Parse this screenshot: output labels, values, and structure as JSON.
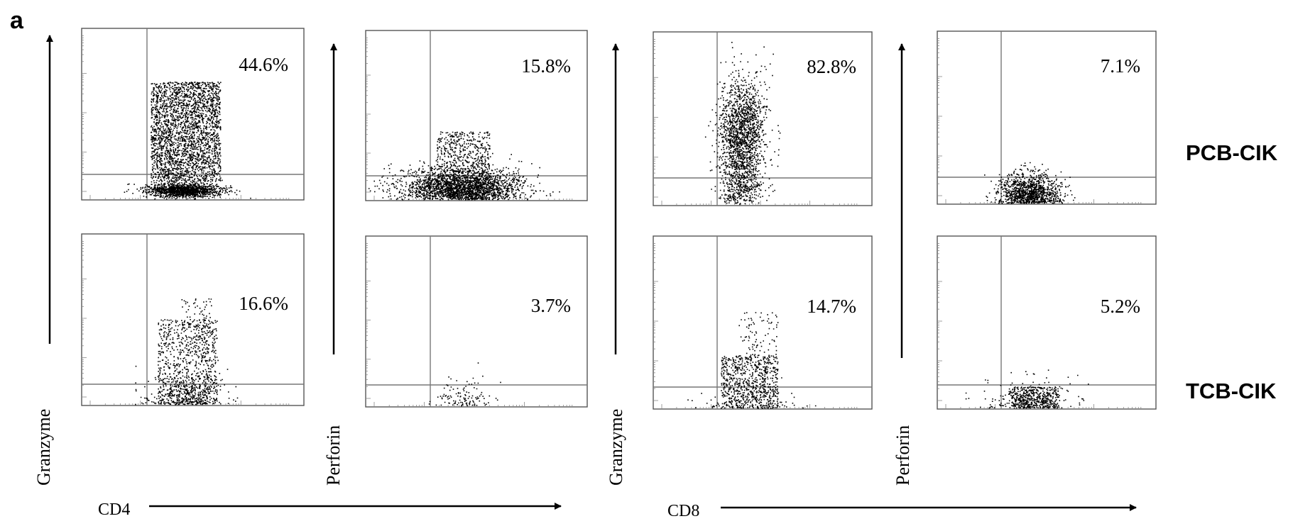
{
  "panel_letter": "a",
  "row_labels": [
    "PCB-CIK",
    "TCB-CIK"
  ],
  "axis_labels": {
    "cd4": "CD4",
    "cd8": "CD8",
    "granzyme": "Granzyme",
    "perforin": "Perforin"
  },
  "colors": {
    "frame": "#555555",
    "gate": "#777777",
    "dots": "#000000",
    "text": "#000000"
  },
  "chart_data": {
    "type": "scatter",
    "plot_kind": "flow-cytometry-dot-plot-grid",
    "axis_scale": "log",
    "panels": [
      {
        "row": "PCB-CIK",
        "x_marker": "CD4",
        "y_marker": "Granzyme",
        "quadrant_percent": "44.6%"
      },
      {
        "row": "PCB-CIK",
        "x_marker": "CD4",
        "y_marker": "Perforin",
        "quadrant_percent": "15.8%"
      },
      {
        "row": "PCB-CIK",
        "x_marker": "CD8",
        "y_marker": "Granzyme",
        "quadrant_percent": "82.8%"
      },
      {
        "row": "PCB-CIK",
        "x_marker": "CD8",
        "y_marker": "Perforin",
        "quadrant_percent": "7.1%"
      },
      {
        "row": "TCB-CIK",
        "x_marker": "CD4",
        "y_marker": "Granzyme",
        "quadrant_percent": "16.6%"
      },
      {
        "row": "TCB-CIK",
        "x_marker": "CD4",
        "y_marker": "Perforin",
        "quadrant_percent": "3.7%"
      },
      {
        "row": "TCB-CIK",
        "x_marker": "CD8",
        "y_marker": "Granzyme",
        "quadrant_percent": "14.7%"
      },
      {
        "row": "TCB-CIK",
        "x_marker": "CD8",
        "y_marker": "Perforin",
        "quadrant_percent": "5.2%"
      }
    ]
  }
}
